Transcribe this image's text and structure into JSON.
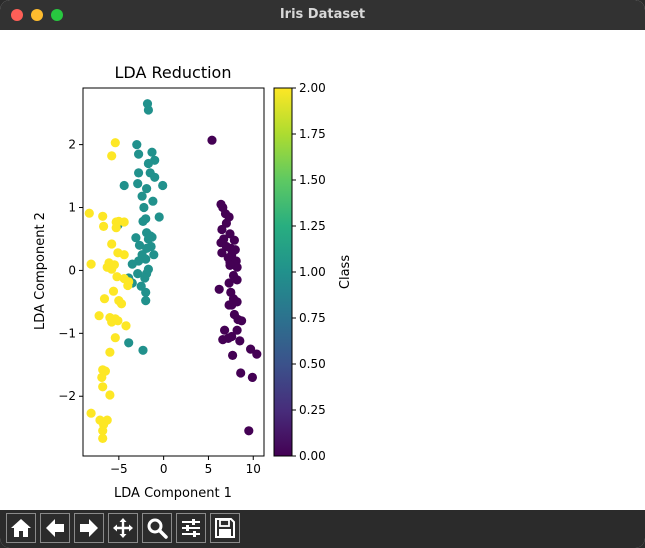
{
  "window": {
    "title": "Iris Dataset"
  },
  "toolbar": {
    "buttons": [
      {
        "name": "home-button",
        "icon": "home-icon"
      },
      {
        "name": "back-button",
        "icon": "arrow-left-icon"
      },
      {
        "name": "forward-button",
        "icon": "arrow-right-icon"
      },
      {
        "name": "pan-button",
        "icon": "move-icon"
      },
      {
        "name": "zoom-button",
        "icon": "zoom-icon"
      },
      {
        "name": "configure-subplots-button",
        "icon": "sliders-icon"
      },
      {
        "name": "save-button",
        "icon": "floppy-disk-icon"
      }
    ]
  },
  "chart_data": {
    "type": "scatter",
    "title": "LDA Reduction",
    "xlabel": "LDA Component 1",
    "ylabel": "LDA Component 2",
    "xlim": [
      -9,
      11.2
    ],
    "ylim": [
      -2.95,
      2.9
    ],
    "xticks": [
      -5,
      0,
      5,
      10
    ],
    "xtick_labels": [
      "−5",
      "0",
      "5",
      "10"
    ],
    "yticks": [
      -2,
      -1,
      0,
      1,
      2
    ],
    "ytick_labels": [
      "−2",
      "−1",
      "0",
      "1",
      "2"
    ],
    "grid": false,
    "colorbar": {
      "label": "Class",
      "colormap": "viridis",
      "range": [
        0,
        2
      ],
      "ticks": [
        0,
        0.25,
        0.5,
        0.75,
        1.0,
        1.25,
        1.5,
        1.75,
        2.0
      ],
      "tick_labels": [
        "0.00",
        "0.25",
        "0.50",
        "0.75",
        "1.00",
        "1.25",
        "1.50",
        "1.75",
        "2.00"
      ]
    },
    "colors": {
      "0": "#440154",
      "1": "#21918c",
      "2": "#fde725"
    },
    "series": [
      {
        "class": 0,
        "points": [
          [
            5.4,
            2.07
          ],
          [
            6.4,
            1.05
          ],
          [
            6.6,
            1.0
          ],
          [
            6.9,
            0.9
          ],
          [
            7.3,
            0.85
          ],
          [
            7.0,
            0.75
          ],
          [
            6.5,
            0.65
          ],
          [
            7.4,
            0.58
          ],
          [
            6.7,
            0.5
          ],
          [
            7.9,
            0.48
          ],
          [
            6.4,
            0.44
          ],
          [
            7.5,
            0.35
          ],
          [
            7.0,
            0.38
          ],
          [
            8.0,
            0.33
          ],
          [
            6.5,
            0.28
          ],
          [
            7.6,
            0.25
          ],
          [
            7.2,
            0.2
          ],
          [
            8.1,
            0.15
          ],
          [
            7.4,
            0.13
          ],
          [
            8.2,
            0.05
          ],
          [
            7.9,
            0.1
          ],
          [
            7.4,
            0.08
          ],
          [
            7.8,
            -0.08
          ],
          [
            8.2,
            -0.15
          ],
          [
            7.3,
            -0.2
          ],
          [
            6.2,
            -0.3
          ],
          [
            7.5,
            -0.35
          ],
          [
            7.8,
            -0.45
          ],
          [
            8.2,
            -0.5
          ],
          [
            7.6,
            -0.55
          ],
          [
            7.9,
            -0.7
          ],
          [
            7.3,
            -0.55
          ],
          [
            8.3,
            -0.78
          ],
          [
            8.7,
            -0.8
          ],
          [
            8.2,
            -0.95
          ],
          [
            6.8,
            -0.95
          ],
          [
            7.6,
            -1.05
          ],
          [
            6.6,
            -1.1
          ],
          [
            7.2,
            -1.08
          ],
          [
            8.5,
            -1.12
          ],
          [
            9.7,
            -1.25
          ],
          [
            7.7,
            -1.35
          ],
          [
            10.4,
            -1.33
          ],
          [
            8.6,
            -1.63
          ],
          [
            9.9,
            -1.7
          ],
          [
            9.5,
            -2.55
          ]
        ]
      },
      {
        "class": 1,
        "points": [
          [
            -1.8,
            2.65
          ],
          [
            -1.7,
            2.55
          ],
          [
            -3.0,
            2.0
          ],
          [
            -1.3,
            1.88
          ],
          [
            -2.8,
            1.85
          ],
          [
            -1.0,
            1.75
          ],
          [
            -1.7,
            1.7
          ],
          [
            -2.8,
            1.55
          ],
          [
            -1.5,
            1.55
          ],
          [
            -1.0,
            1.48
          ],
          [
            -4.4,
            1.35
          ],
          [
            -2.9,
            1.38
          ],
          [
            -0.1,
            1.35
          ],
          [
            -1.9,
            1.3
          ],
          [
            -2.4,
            1.18
          ],
          [
            -1.2,
            1.1
          ],
          [
            -2.2,
            1.0
          ],
          [
            -0.5,
            0.85
          ],
          [
            -2.0,
            0.82
          ],
          [
            -2.3,
            0.78
          ],
          [
            -5.1,
            0.72
          ],
          [
            -1.9,
            0.6
          ],
          [
            -1.5,
            0.55
          ],
          [
            -1.3,
            0.53
          ],
          [
            -3.1,
            0.52
          ],
          [
            -1.7,
            0.5
          ],
          [
            -1.4,
            0.38
          ],
          [
            -2.7,
            0.4
          ],
          [
            -1.9,
            0.35
          ],
          [
            -2.4,
            0.25
          ],
          [
            -1.1,
            0.25
          ],
          [
            -2.0,
            0.18
          ],
          [
            -2.8,
            0.15
          ],
          [
            -3.5,
            0.1
          ],
          [
            -1.7,
            0.02
          ],
          [
            -2.9,
            -0.05
          ],
          [
            -1.9,
            -0.05
          ],
          [
            -3.9,
            -0.12
          ],
          [
            -2.1,
            -0.12
          ],
          [
            -3.5,
            -0.2
          ],
          [
            -2.5,
            -0.25
          ],
          [
            -2.0,
            -0.35
          ],
          [
            -2.0,
            -0.48
          ],
          [
            -3.9,
            -1.15
          ],
          [
            -2.3,
            -1.27
          ]
        ]
      },
      {
        "class": 2,
        "points": [
          [
            -5.4,
            2.03
          ],
          [
            -5.8,
            1.82
          ],
          [
            -8.3,
            0.91
          ],
          [
            -6.8,
            0.86
          ],
          [
            -5.3,
            0.77
          ],
          [
            -5.0,
            0.78
          ],
          [
            -4.4,
            0.77
          ],
          [
            -6.7,
            0.7
          ],
          [
            -5.3,
            0.68
          ],
          [
            -5.8,
            0.42
          ],
          [
            -5.1,
            0.28
          ],
          [
            -4.4,
            0.25
          ],
          [
            -6.1,
            0.12
          ],
          [
            -8.1,
            0.1
          ],
          [
            -5.5,
            0.09
          ],
          [
            -6.3,
            0.05
          ],
          [
            -5.8,
            0.02
          ],
          [
            -5.2,
            -0.1
          ],
          [
            -4.4,
            -0.13
          ],
          [
            -3.9,
            -0.18
          ],
          [
            -4.0,
            -0.24
          ],
          [
            -5.6,
            -0.33
          ],
          [
            -6.6,
            -0.45
          ],
          [
            -5.0,
            -0.48
          ],
          [
            -4.7,
            -0.53
          ],
          [
            -7.2,
            -0.72
          ],
          [
            -6.0,
            -0.75
          ],
          [
            -5.4,
            -0.77
          ],
          [
            -5.1,
            -0.8
          ],
          [
            -5.8,
            -0.82
          ],
          [
            -4.2,
            -0.88
          ],
          [
            -5.4,
            -1.07
          ],
          [
            -6.0,
            -1.3
          ],
          [
            -6.8,
            -1.58
          ],
          [
            -6.5,
            -1.6
          ],
          [
            -6.9,
            -1.7
          ],
          [
            -6.8,
            -1.85
          ],
          [
            -6.0,
            -1.98
          ],
          [
            -8.1,
            -2.27
          ],
          [
            -7.1,
            -2.38
          ],
          [
            -6.3,
            -2.38
          ],
          [
            -6.7,
            -2.45
          ],
          [
            -6.8,
            -2.55
          ],
          [
            -6.8,
            -2.67
          ]
        ]
      }
    ]
  }
}
